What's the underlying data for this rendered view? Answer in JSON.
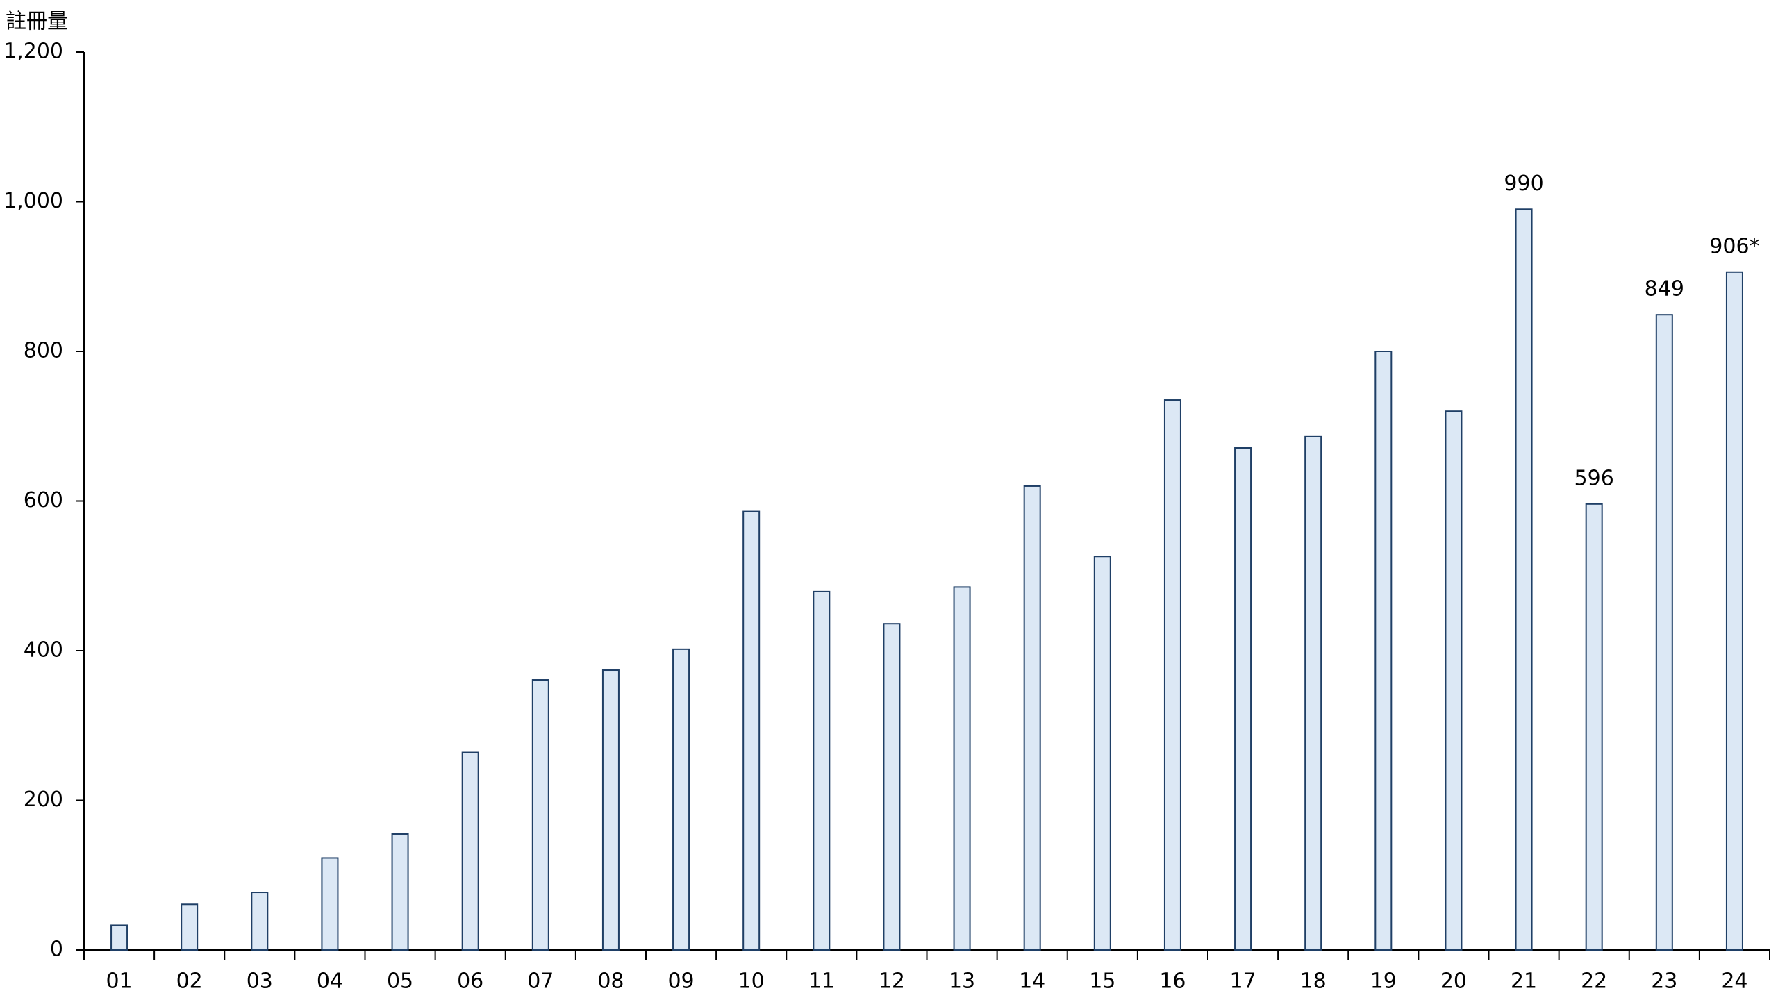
{
  "chart_data": {
    "type": "bar",
    "y_label": "註冊量",
    "categories": [
      "01",
      "02",
      "03",
      "04",
      "05",
      "06",
      "07",
      "08",
      "09",
      "10",
      "11",
      "12",
      "13",
      "14",
      "15",
      "16",
      "17",
      "18",
      "19",
      "20",
      "21",
      "22",
      "23",
      "24"
    ],
    "values": [
      33,
      61,
      77,
      123,
      155,
      264,
      361,
      374,
      402,
      586,
      479,
      436,
      485,
      620,
      526,
      735,
      671,
      686,
      800,
      720,
      990,
      596,
      849,
      906
    ],
    "value_labels": [
      null,
      null,
      null,
      null,
      null,
      null,
      null,
      null,
      null,
      null,
      null,
      null,
      null,
      null,
      null,
      null,
      null,
      null,
      null,
      null,
      "990",
      "596",
      "849",
      "906*"
    ],
    "color": "#dce8f5",
    "edge_color": "#1f3f66",
    "ylim": [
      0,
      1200
    ],
    "yticks": [
      0,
      200,
      400,
      600,
      800,
      {
        "value": 1000,
        "label": "1,000"
      },
      {
        "value": 1200,
        "label": "1,200"
      }
    ],
    "grid": false
  }
}
